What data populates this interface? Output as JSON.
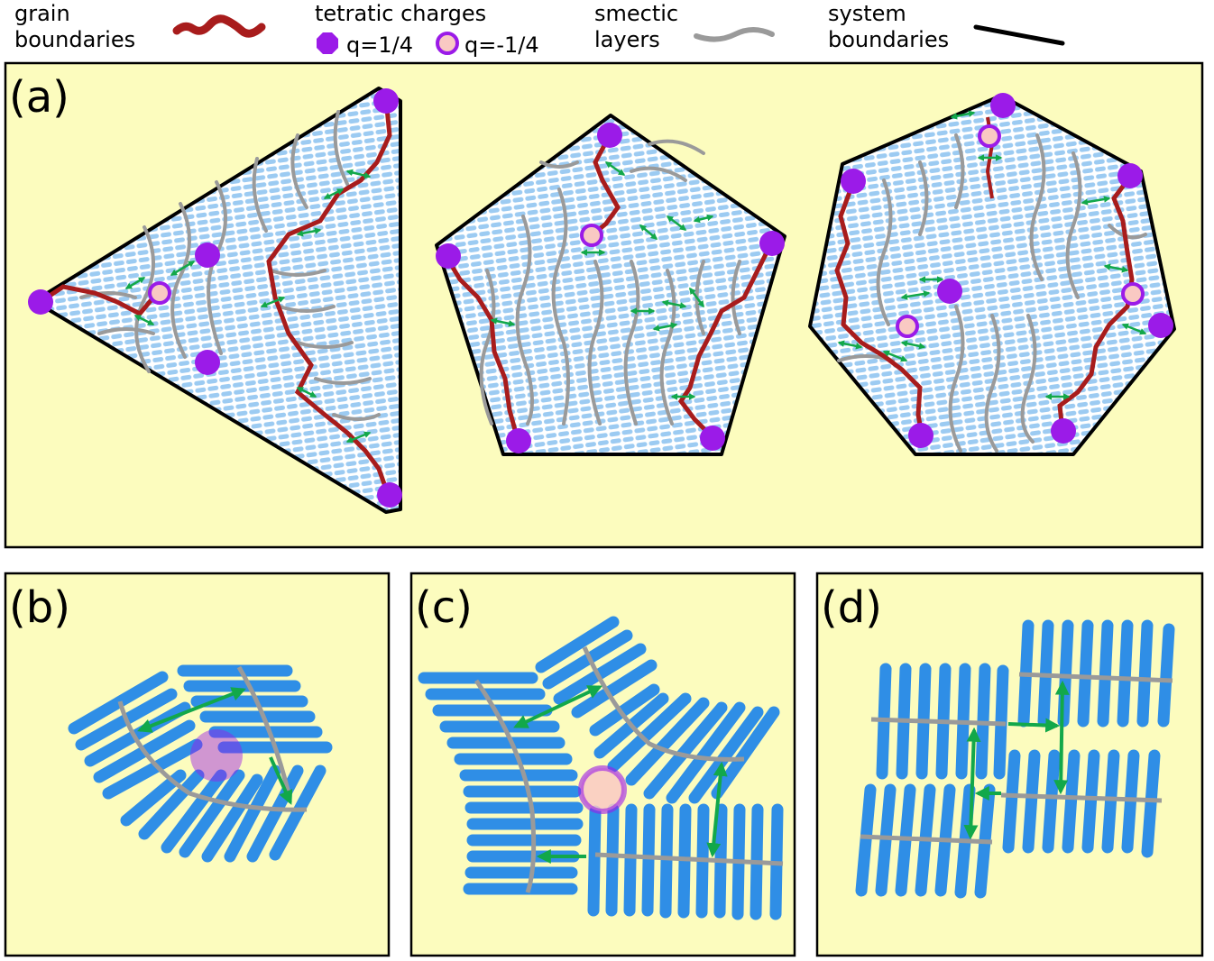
{
  "legend": {
    "grain_boundaries": [
      "grain",
      "boundaries"
    ],
    "tetratic_charges": "tetratic charges",
    "q_pos": "q=1/4",
    "q_neg": "q=-1/4",
    "smectic_layers": [
      "smectic",
      "layers"
    ],
    "system_boundaries": [
      "system",
      "boundaries"
    ]
  },
  "panels": {
    "a": "(a)",
    "b": "(b)",
    "c": "(c)",
    "d": "(d)"
  },
  "colors": {
    "panel_bg": "#fcfcbe",
    "rod": "#2f8ee6",
    "rod_light": "#9ccbf2",
    "layer": "#9a9a9a",
    "grain": "#a81c1c",
    "charge": "#9b1be8",
    "neg_fill": "#f9c9c3",
    "arrow": "#12a84a",
    "border": "#000000"
  }
}
